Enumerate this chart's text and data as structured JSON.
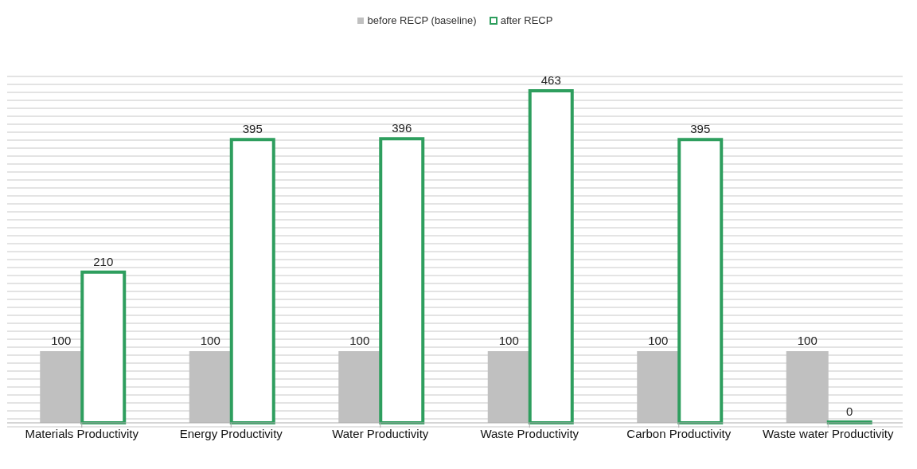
{
  "chart_data": {
    "type": "bar",
    "categories": [
      "Materials Productivity",
      "Energy Productivity",
      "Water Productivity",
      "Waste Productivity",
      "Carbon Productivity",
      "Waste water Productivity"
    ],
    "series": [
      {
        "name": "before RECP (baseline)",
        "color": "#c0c0c0",
        "values": [
          100,
          100,
          100,
          100,
          100,
          100
        ]
      },
      {
        "name": "after RECP",
        "color": "#2e9e5e",
        "values": [
          210,
          395,
          396,
          463,
          395,
          0
        ]
      }
    ],
    "tick_labels": "x",
    "grid": "y",
    "legend": "top",
    "data_labels": true
  }
}
